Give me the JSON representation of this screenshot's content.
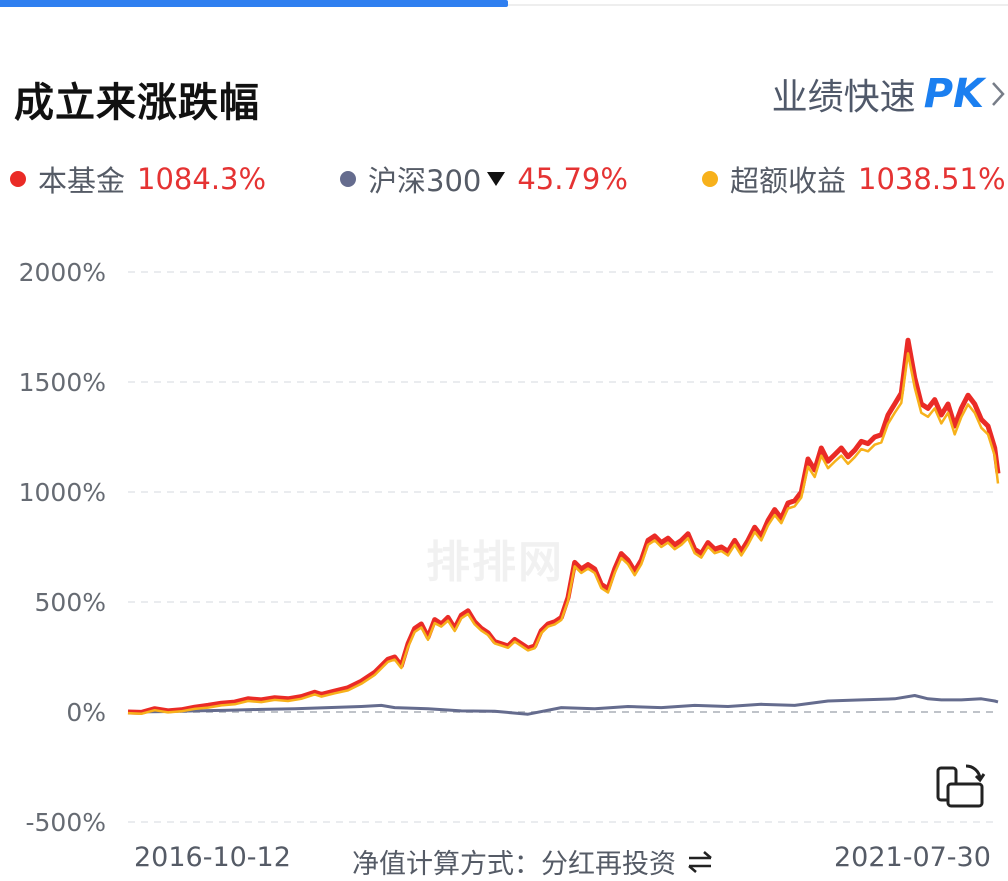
{
  "header": {
    "title": "成立来涨跌幅",
    "pk_label": "业绩快速",
    "pk_badge": "PK"
  },
  "legend": [
    {
      "name": "本基金",
      "value": "1084.3%",
      "color": "#ea2b26"
    },
    {
      "name": "沪深300",
      "value": "45.79%",
      "color": "#656c8e"
    },
    {
      "name": "超额收益",
      "value": "1038.51%",
      "color": "#f7b11b"
    }
  ],
  "watermark": "排排网",
  "footer": {
    "x_start": "2016-10-12",
    "x_end": "2021-07-30",
    "method_label": "净值计算方式：分红再投资"
  },
  "chart_data": {
    "type": "line",
    "yticks": [
      "2000%",
      "1500%",
      "1000%",
      "500%",
      "0%",
      "-500%"
    ],
    "ylim": [
      -500,
      2000
    ],
    "x_range": [
      "2016-10-12",
      "2021-07-30"
    ],
    "grid": true,
    "series": [
      {
        "name": "本基金",
        "color": "#ea2b26",
        "points": [
          [
            0,
            0
          ],
          [
            2,
            -2
          ],
          [
            4,
            15
          ],
          [
            6,
            5
          ],
          [
            8,
            10
          ],
          [
            10,
            22
          ],
          [
            12,
            30
          ],
          [
            14,
            40
          ],
          [
            16,
            45
          ],
          [
            18,
            60
          ],
          [
            20,
            55
          ],
          [
            22,
            65
          ],
          [
            24,
            60
          ],
          [
            26,
            70
          ],
          [
            28,
            90
          ],
          [
            29,
            80
          ],
          [
            31,
            95
          ],
          [
            33,
            110
          ],
          [
            35,
            140
          ],
          [
            37,
            180
          ],
          [
            39,
            240
          ],
          [
            40,
            250
          ],
          [
            41,
            210
          ],
          [
            42,
            310
          ],
          [
            43,
            380
          ],
          [
            44,
            400
          ],
          [
            45,
            340
          ],
          [
            46,
            420
          ],
          [
            47,
            400
          ],
          [
            48,
            430
          ],
          [
            49,
            380
          ],
          [
            50,
            440
          ],
          [
            51,
            460
          ],
          [
            52,
            410
          ],
          [
            53,
            380
          ],
          [
            54,
            360
          ],
          [
            55,
            320
          ],
          [
            56,
            310
          ],
          [
            57,
            300
          ],
          [
            58,
            330
          ],
          [
            60,
            290
          ],
          [
            61,
            300
          ],
          [
            62,
            370
          ],
          [
            63,
            400
          ],
          [
            64,
            410
          ],
          [
            65,
            430
          ],
          [
            66,
            520
          ],
          [
            67,
            680
          ],
          [
            68,
            650
          ],
          [
            69,
            670
          ],
          [
            70,
            650
          ],
          [
            71,
            580
          ],
          [
            72,
            560
          ],
          [
            73,
            650
          ],
          [
            74,
            720
          ],
          [
            75,
            690
          ],
          [
            76,
            640
          ],
          [
            77,
            690
          ],
          [
            78,
            780
          ],
          [
            79,
            800
          ],
          [
            80,
            770
          ],
          [
            81,
            790
          ],
          [
            82,
            760
          ],
          [
            83,
            780
          ],
          [
            84,
            810
          ],
          [
            85,
            740
          ],
          [
            86,
            720
          ],
          [
            87,
            770
          ],
          [
            88,
            740
          ],
          [
            89,
            750
          ],
          [
            90,
            730
          ],
          [
            91,
            780
          ],
          [
            92,
            730
          ],
          [
            93,
            780
          ],
          [
            94,
            840
          ],
          [
            95,
            800
          ],
          [
            96,
            870
          ],
          [
            97,
            920
          ],
          [
            98,
            880
          ],
          [
            99,
            950
          ],
          [
            100,
            960
          ],
          [
            101,
            1000
          ],
          [
            102,
            1150
          ],
          [
            103,
            1100
          ],
          [
            104,
            1200
          ],
          [
            105,
            1140
          ],
          [
            106,
            1170
          ],
          [
            107,
            1200
          ],
          [
            108,
            1160
          ],
          [
            109,
            1190
          ],
          [
            110,
            1230
          ],
          [
            111,
            1220
          ],
          [
            112,
            1250
          ],
          [
            113,
            1260
          ],
          [
            114,
            1350
          ],
          [
            115,
            1400
          ],
          [
            116,
            1450
          ],
          [
            117,
            1690
          ],
          [
            118,
            1520
          ],
          [
            119,
            1400
          ],
          [
            120,
            1380
          ],
          [
            121,
            1420
          ],
          [
            122,
            1350
          ],
          [
            123,
            1400
          ],
          [
            124,
            1300
          ],
          [
            125,
            1380
          ],
          [
            126,
            1440
          ],
          [
            127,
            1400
          ],
          [
            128,
            1330
          ],
          [
            129,
            1300
          ],
          [
            130,
            1200
          ],
          [
            130.5,
            1084
          ]
        ]
      },
      {
        "name": "超额收益",
        "color": "#f7b11b",
        "points": [
          [
            0,
            -5
          ],
          [
            2,
            -8
          ],
          [
            4,
            8
          ],
          [
            6,
            -2
          ],
          [
            8,
            3
          ],
          [
            10,
            14
          ],
          [
            12,
            20
          ],
          [
            14,
            30
          ],
          [
            16,
            35
          ],
          [
            18,
            50
          ],
          [
            20,
            45
          ],
          [
            22,
            55
          ],
          [
            24,
            50
          ],
          [
            26,
            60
          ],
          [
            28,
            80
          ],
          [
            29,
            70
          ],
          [
            31,
            85
          ],
          [
            33,
            98
          ],
          [
            35,
            128
          ],
          [
            37,
            168
          ],
          [
            39,
            228
          ],
          [
            40,
            238
          ],
          [
            41,
            200
          ],
          [
            42,
            295
          ],
          [
            43,
            364
          ],
          [
            44,
            384
          ],
          [
            45,
            328
          ],
          [
            46,
            404
          ],
          [
            47,
            388
          ],
          [
            48,
            415
          ],
          [
            49,
            368
          ],
          [
            50,
            426
          ],
          [
            51,
            446
          ],
          [
            52,
            398
          ],
          [
            53,
            370
          ],
          [
            54,
            350
          ],
          [
            55,
            312
          ],
          [
            56,
            302
          ],
          [
            57,
            292
          ],
          [
            58,
            320
          ],
          [
            60,
            280
          ],
          [
            61,
            290
          ],
          [
            62,
            358
          ],
          [
            63,
            388
          ],
          [
            64,
            398
          ],
          [
            65,
            418
          ],
          [
            66,
            505
          ],
          [
            67,
            662
          ],
          [
            68,
            632
          ],
          [
            69,
            652
          ],
          [
            70,
            632
          ],
          [
            71,
            563
          ],
          [
            72,
            543
          ],
          [
            73,
            632
          ],
          [
            74,
            700
          ],
          [
            75,
            672
          ],
          [
            76,
            622
          ],
          [
            77,
            672
          ],
          [
            78,
            760
          ],
          [
            79,
            780
          ],
          [
            80,
            750
          ],
          [
            81,
            770
          ],
          [
            82,
            740
          ],
          [
            83,
            760
          ],
          [
            84,
            790
          ],
          [
            85,
            722
          ],
          [
            86,
            702
          ],
          [
            87,
            752
          ],
          [
            88,
            722
          ],
          [
            89,
            732
          ],
          [
            90,
            712
          ],
          [
            91,
            760
          ],
          [
            92,
            712
          ],
          [
            93,
            760
          ],
          [
            94,
            818
          ],
          [
            95,
            780
          ],
          [
            96,
            848
          ],
          [
            97,
            895
          ],
          [
            98,
            858
          ],
          [
            99,
            925
          ],
          [
            100,
            935
          ],
          [
            101,
            975
          ],
          [
            102,
            1115
          ],
          [
            103,
            1068
          ],
          [
            104,
            1165
          ],
          [
            105,
            1108
          ],
          [
            106,
            1138
          ],
          [
            107,
            1165
          ],
          [
            108,
            1128
          ],
          [
            109,
            1158
          ],
          [
            110,
            1195
          ],
          [
            111,
            1185
          ],
          [
            112,
            1215
          ],
          [
            113,
            1225
          ],
          [
            114,
            1310
          ],
          [
            115,
            1360
          ],
          [
            116,
            1405
          ],
          [
            117,
            1630
          ],
          [
            118,
            1475
          ],
          [
            119,
            1360
          ],
          [
            120,
            1342
          ],
          [
            121,
            1380
          ],
          [
            122,
            1312
          ],
          [
            123,
            1360
          ],
          [
            124,
            1262
          ],
          [
            125,
            1340
          ],
          [
            126,
            1398
          ],
          [
            127,
            1360
          ],
          [
            128,
            1292
          ],
          [
            129,
            1262
          ],
          [
            130,
            1165
          ],
          [
            130.5,
            1038.51
          ]
        ]
      },
      {
        "name": "沪深300",
        "color": "#656c8e",
        "points": [
          [
            0,
            0
          ],
          [
            5,
            2
          ],
          [
            10,
            5
          ],
          [
            15,
            8
          ],
          [
            20,
            12
          ],
          [
            25,
            15
          ],
          [
            30,
            20
          ],
          [
            35,
            25
          ],
          [
            38,
            30
          ],
          [
            40,
            20
          ],
          [
            45,
            15
          ],
          [
            50,
            5
          ],
          [
            55,
            3
          ],
          [
            60,
            -10
          ],
          [
            65,
            20
          ],
          [
            70,
            15
          ],
          [
            75,
            25
          ],
          [
            80,
            20
          ],
          [
            85,
            30
          ],
          [
            90,
            25
          ],
          [
            95,
            35
          ],
          [
            100,
            30
          ],
          [
            105,
            50
          ],
          [
            110,
            55
          ],
          [
            115,
            60
          ],
          [
            118,
            75
          ],
          [
            120,
            60
          ],
          [
            122,
            55
          ],
          [
            125,
            55
          ],
          [
            128,
            60
          ],
          [
            130,
            50
          ],
          [
            130.5,
            45.79
          ]
        ]
      }
    ]
  }
}
